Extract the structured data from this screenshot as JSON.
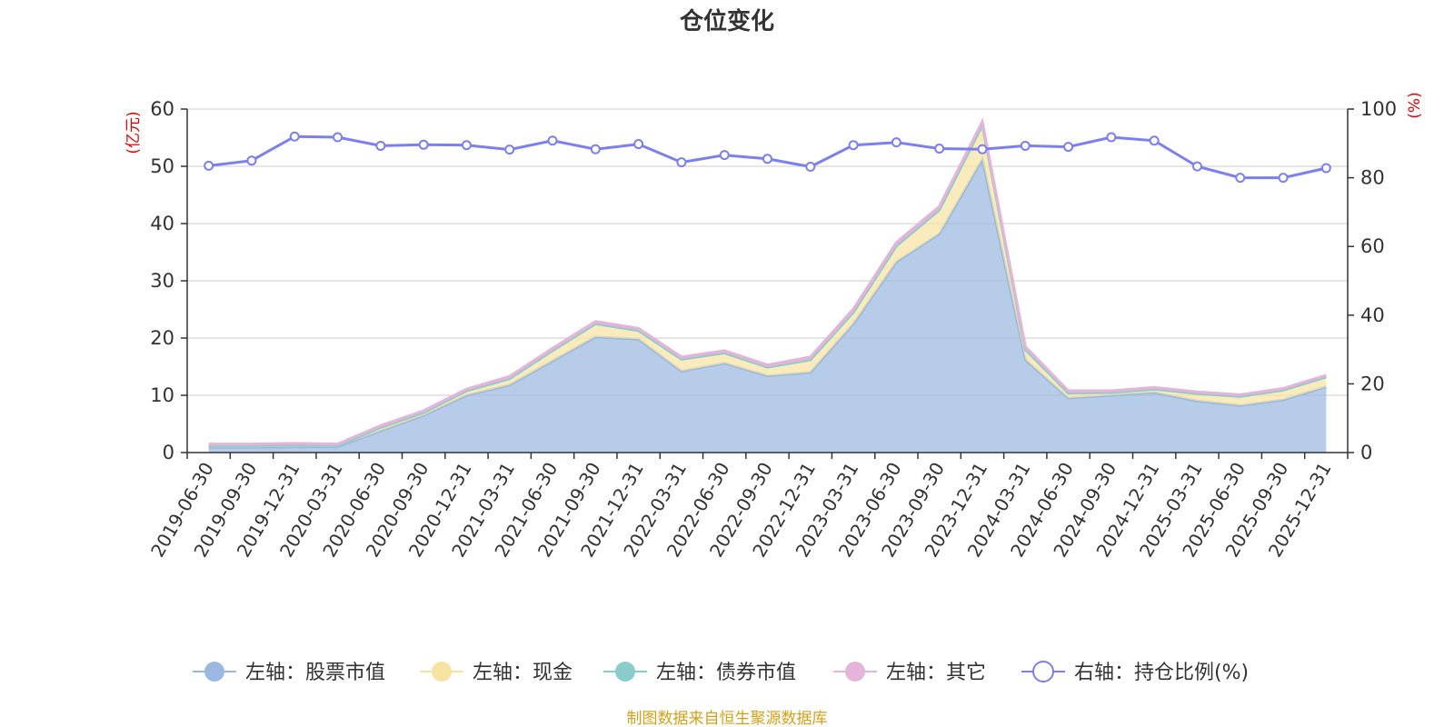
{
  "chart_data": {
    "type": "area",
    "title": "仓位变化",
    "left_axis_unit": "(亿元)",
    "right_axis_unit": "(%)",
    "ylim_left": [
      0,
      60
    ],
    "ylim_right": [
      0,
      100
    ],
    "yticks_left": [
      "0",
      "10",
      "20",
      "30",
      "40",
      "50",
      "60"
    ],
    "yticks_right": [
      "0",
      "20",
      "40",
      "60",
      "80",
      "100"
    ],
    "grid": true,
    "legend_position": "bottom",
    "categories": [
      "2019-06-30",
      "2019-09-30",
      "2019-12-31",
      "2020-03-31",
      "2020-06-30",
      "2020-09-30",
      "2020-12-31",
      "2021-03-31",
      "2021-06-30",
      "2021-09-30",
      "2021-12-31",
      "2022-03-31",
      "2022-06-30",
      "2022-09-30",
      "2022-12-31",
      "2023-03-31",
      "2023-06-30",
      "2023-09-30",
      "2023-12-31",
      "2024-03-31",
      "2024-06-30",
      "2024-09-30",
      "2024-12-31",
      "2025-03-31",
      "2025-06-30",
      "2025-09-30",
      "2025-12-31"
    ],
    "series": [
      {
        "name": "左轴：股票市值",
        "axis": "left",
        "color": "#9bb8e0",
        "values": [
          0.9,
          0.9,
          1.0,
          1.0,
          3.8,
          6.5,
          10.0,
          11.8,
          16.0,
          20.2,
          19.8,
          14.2,
          15.6,
          13.4,
          14.0,
          22.5,
          33.3,
          38.2,
          51.2,
          16.2,
          9.5,
          10.0,
          10.5,
          9.0,
          8.2,
          9.2,
          11.5
        ]
      },
      {
        "name": "左轴：现金",
        "axis": "left",
        "color": "#f7e3a1",
        "values": [
          0.3,
          0.3,
          0.3,
          0.2,
          0.6,
          0.5,
          0.8,
          1.1,
          1.8,
          2.3,
          1.5,
          2.1,
          1.8,
          1.5,
          2.2,
          2.0,
          2.8,
          4.2,
          6.0,
          1.8,
          0.9,
          0.5,
          0.6,
          1.3,
          1.6,
          1.7,
          1.7
        ]
      },
      {
        "name": "左轴：债券市值",
        "axis": "left",
        "color": "#88cdc9",
        "values": [
          0,
          0,
          0,
          0,
          0,
          0,
          0,
          0,
          0,
          0,
          0,
          0,
          0,
          0,
          0,
          0,
          0,
          0,
          0,
          0,
          0,
          0,
          0,
          0,
          0,
          0,
          0
        ]
      },
      {
        "name": "左轴：其它",
        "axis": "left",
        "color": "#e4b4da",
        "values": [
          0.3,
          0.3,
          0.3,
          0.3,
          0.3,
          0.3,
          0.3,
          0.4,
          0.4,
          0.4,
          0.4,
          0.4,
          0.4,
          0.4,
          0.5,
          0.6,
          0.6,
          0.6,
          0.6,
          0.5,
          0.4,
          0.3,
          0.3,
          0.3,
          0.3,
          0.3,
          0.3
        ]
      },
      {
        "name": "右轴：持仓比例(%)",
        "axis": "right",
        "color": "#7b7ff0",
        "values": [
          83.5,
          85.0,
          92.0,
          91.8,
          89.3,
          89.6,
          89.5,
          88.2,
          90.8,
          88.3,
          89.8,
          84.5,
          86.6,
          85.5,
          83.2,
          89.5,
          90.3,
          88.5,
          88.3,
          89.3,
          89.0,
          91.8,
          90.8,
          83.3,
          80.0,
          80.0,
          82.8
        ]
      }
    ]
  },
  "footer": {
    "source": "制图数据来自恒生聚源数据库"
  }
}
